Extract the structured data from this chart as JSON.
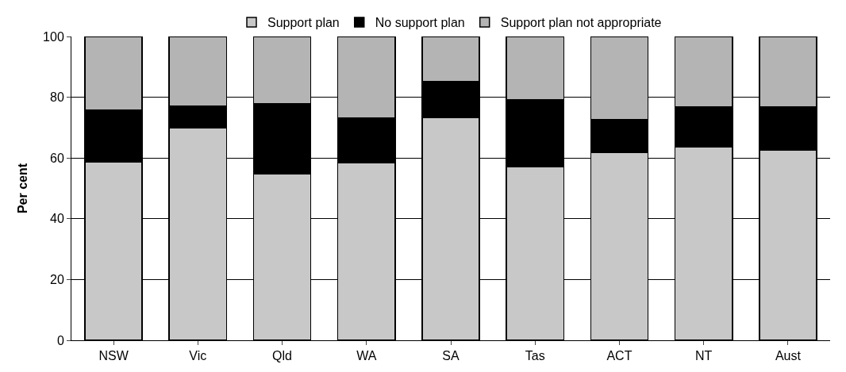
{
  "chart_data": {
    "type": "bar",
    "stacked": true,
    "ylabel": "Per cent",
    "categories": [
      "NSW",
      "Vic",
      "Qld",
      "WA",
      "SA",
      "Tas",
      "ACT",
      "NT",
      "Aust"
    ],
    "series": [
      {
        "name": "Support plan",
        "color": "#c8c8c8",
        "values": [
          58.7,
          69.8,
          54.8,
          58.4,
          73.2,
          57.0,
          61.9,
          63.7,
          62.6
        ]
      },
      {
        "name": "No support plan",
        "color": "#000000",
        "values": [
          17.0,
          7.2,
          23.2,
          14.7,
          12.1,
          22.1,
          10.7,
          13.2,
          14.3
        ]
      },
      {
        "name": "Support plan not appropriate",
        "color": "#b4b4b4",
        "values": [
          24.3,
          23.0,
          22.0,
          26.9,
          14.7,
          20.9,
          27.4,
          23.1,
          23.1
        ]
      }
    ],
    "ylim": [
      0,
      100
    ],
    "yticks": [
      0,
      20,
      40,
      60,
      80,
      100
    ],
    "grid": "y",
    "legend": "top"
  }
}
